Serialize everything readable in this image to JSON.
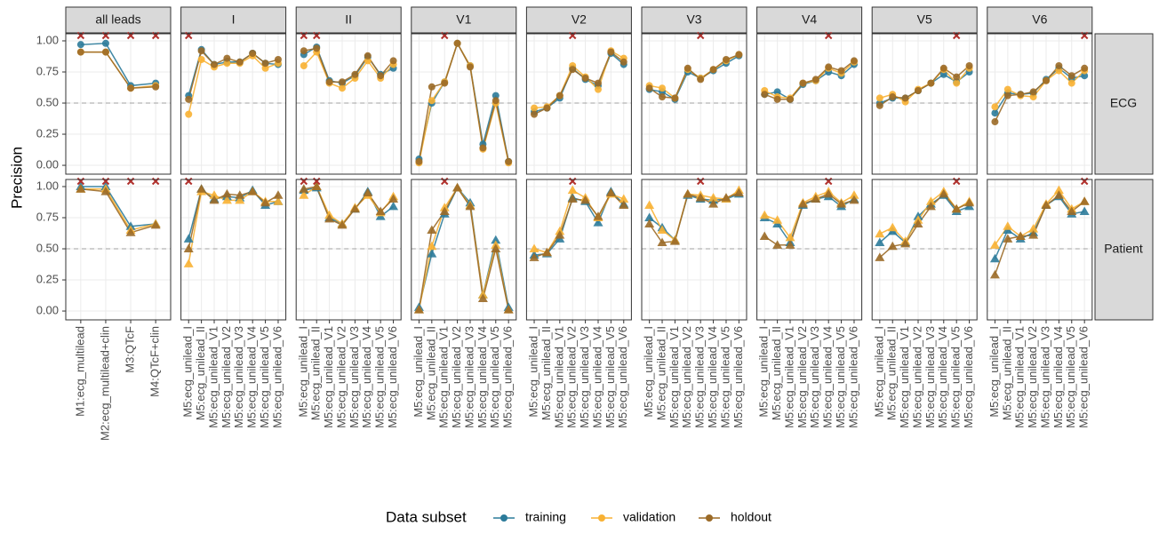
{
  "chart_data": {
    "type": "line",
    "y_label": "Precision",
    "legend_title": "Data subset",
    "series": [
      {
        "name": "training",
        "color": "#2c7b9a"
      },
      {
        "name": "validation",
        "color": "#f8b133"
      },
      {
        "name": "holdout",
        "color": "#9b6a27"
      }
    ],
    "rows": [
      {
        "name": "ECG",
        "marker": "circle"
      },
      {
        "name": "Patient",
        "marker": "triangle"
      }
    ],
    "ylim": [
      -0.071,
      1.057
    ],
    "yticks": [
      {
        "value": 0,
        "label": "0.00"
      },
      {
        "value": 0.25,
        "label": "0.25"
      },
      {
        "value": 0.5,
        "label": "0.50"
      },
      {
        "value": 0.75,
        "label": "0.75"
      },
      {
        "value": 1,
        "label": "1.00"
      }
    ],
    "reference_line": 0.5,
    "grid": true,
    "highlight_color": "#b0302c",
    "panels": [
      {
        "name": "all leads",
        "categories": [
          "M1:ecg_multilead",
          "M2:ecg_multilead+clin",
          "M3:QTcF",
          "M4:QTcF+clin"
        ],
        "highlight": [
          0,
          1,
          2,
          3
        ],
        "values": [
          [
            [
              0.97,
              0.98,
              0.64,
              0.66
            ],
            [
              0.91,
              0.91,
              0.62,
              0.64
            ],
            [
              0.91,
              0.91,
              0.62,
              0.63
            ]
          ],
          [
            [
              1.0,
              1.0,
              0.68,
              0.7
            ],
            [
              0.98,
              0.98,
              0.65,
              0.7
            ],
            [
              0.98,
              0.96,
              0.63,
              0.69
            ]
          ]
        ]
      },
      {
        "name": "I",
        "categories": [
          "M5:ecg_unilead_I",
          "M5:ecg_unilead_II",
          "M5:ecg_unilead_V1",
          "M5:ecg_unilead_V2",
          "M5:ecg_unilead_V3",
          "M5:ecg_unilead_V4",
          "M5:ecg_unilead_V5",
          "M5:ecg_unilead_V6"
        ],
        "highlight": [
          0
        ],
        "values": [
          [
            [
              0.56,
              0.93,
              0.81,
              0.83,
              0.83,
              0.9,
              0.82,
              0.81
            ],
            [
              0.41,
              0.85,
              0.79,
              0.82,
              0.82,
              0.88,
              0.78,
              0.82
            ],
            [
              0.53,
              0.92,
              0.81,
              0.86,
              0.83,
              0.9,
              0.82,
              0.85
            ]
          ],
          [
            [
              0.58,
              0.98,
              0.9,
              0.92,
              0.91,
              0.97,
              0.85,
              0.88
            ],
            [
              0.38,
              0.96,
              0.93,
              0.89,
              0.89,
              0.96,
              0.88,
              0.88
            ],
            [
              0.5,
              0.98,
              0.89,
              0.94,
              0.93,
              0.96,
              0.87,
              0.93
            ]
          ]
        ]
      },
      {
        "name": "II",
        "categories": [
          "M5:ecg_unilead_I",
          "M5:ecg_unilead_II",
          "M5:ecg_unilead_V1",
          "M5:ecg_unilead_V2",
          "M5:ecg_unilead_V3",
          "M5:ecg_unilead_V4",
          "M5:ecg_unilead_V5",
          "M5:ecg_unilead_V6"
        ],
        "highlight": [
          0,
          1
        ],
        "values": [
          [
            [
              0.89,
              0.95,
              0.68,
              0.66,
              0.72,
              0.87,
              0.73,
              0.78
            ],
            [
              0.8,
              0.91,
              0.66,
              0.62,
              0.7,
              0.84,
              0.7,
              0.81
            ],
            [
              0.92,
              0.94,
              0.67,
              0.67,
              0.73,
              0.88,
              0.72,
              0.84
            ]
          ],
          [
            [
              0.97,
              0.99,
              0.75,
              0.7,
              0.82,
              0.96,
              0.76,
              0.84
            ],
            [
              0.93,
              1.0,
              0.77,
              0.7,
              0.83,
              0.93,
              0.79,
              0.92
            ],
            [
              0.98,
              1.0,
              0.74,
              0.69,
              0.82,
              0.95,
              0.8,
              0.9
            ]
          ]
        ]
      },
      {
        "name": "V1",
        "categories": [
          "M5:ecg_unilead_I",
          "M5:ecg_unilead_II",
          "M5:ecg_unilead_V1",
          "M5:ecg_unilead_V2",
          "M5:ecg_unilead_V3",
          "M5:ecg_unilead_V4",
          "M5:ecg_unilead_V5",
          "M5:ecg_unilead_V6"
        ],
        "highlight": [
          2
        ],
        "values": [
          [
            [
              0.05,
              0.5,
              0.67,
              0.98,
              0.8,
              0.17,
              0.56,
              0.03
            ],
            [
              0.02,
              0.52,
              0.67,
              0.98,
              0.8,
              0.13,
              0.5,
              0.02
            ],
            [
              0.03,
              0.63,
              0.66,
              0.98,
              0.79,
              0.14,
              0.52,
              0.03
            ]
          ],
          [
            [
              0.03,
              0.46,
              0.78,
              0.99,
              0.87,
              0.13,
              0.57,
              0.03
            ],
            [
              0.01,
              0.52,
              0.83,
              0.99,
              0.85,
              0.13,
              0.53,
              0.01
            ],
            [
              0.01,
              0.65,
              0.8,
              0.99,
              0.84,
              0.1,
              0.5,
              0.01
            ]
          ]
        ]
      },
      {
        "name": "V2",
        "categories": [
          "M5:ecg_unilead_I",
          "M5:ecg_unilead_II",
          "M5:ecg_unilead_V1",
          "M5:ecg_unilead_V2",
          "M5:ecg_unilead_V3",
          "M5:ecg_unilead_V4",
          "M5:ecg_unilead_V5",
          "M5:ecg_unilead_V6"
        ],
        "highlight": [
          3
        ],
        "values": [
          [
            [
              0.43,
              0.46,
              0.54,
              0.78,
              0.69,
              0.64,
              0.9,
              0.81
            ],
            [
              0.46,
              0.47,
              0.56,
              0.8,
              0.71,
              0.61,
              0.92,
              0.86
            ],
            [
              0.41,
              0.46,
              0.56,
              0.77,
              0.7,
              0.66,
              0.91,
              0.83
            ]
          ],
          [
            [
              0.45,
              0.46,
              0.58,
              0.91,
              0.88,
              0.71,
              0.96,
              0.86
            ],
            [
              0.5,
              0.47,
              0.64,
              0.97,
              0.91,
              0.75,
              0.94,
              0.9
            ],
            [
              0.43,
              0.47,
              0.61,
              0.9,
              0.89,
              0.76,
              0.95,
              0.85
            ]
          ]
        ]
      },
      {
        "name": "V3",
        "categories": [
          "M5:ecg_unilead_I",
          "M5:ecg_unilead_II",
          "M5:ecg_unilead_V1",
          "M5:ecg_unilead_V2",
          "M5:ecg_unilead_V3",
          "M5:ecg_unilead_V4",
          "M5:ecg_unilead_V5",
          "M5:ecg_unilead_V6"
        ],
        "highlight": [
          4
        ],
        "values": [
          [
            [
              0.61,
              0.59,
              0.53,
              0.75,
              0.7,
              0.76,
              0.82,
              0.88
            ],
            [
              0.64,
              0.62,
              0.54,
              0.77,
              0.7,
              0.77,
              0.84,
              0.89
            ],
            [
              0.62,
              0.55,
              0.54,
              0.78,
              0.69,
              0.77,
              0.85,
              0.89
            ]
          ],
          [
            [
              0.75,
              0.67,
              0.57,
              0.93,
              0.9,
              0.89,
              0.9,
              0.94
            ],
            [
              0.85,
              0.65,
              0.57,
              0.94,
              0.93,
              0.91,
              0.9,
              0.97
            ],
            [
              0.7,
              0.55,
              0.56,
              0.94,
              0.91,
              0.86,
              0.91,
              0.95
            ]
          ]
        ]
      },
      {
        "name": "V4",
        "categories": [
          "M5:ecg_unilead_I",
          "M5:ecg_unilead_II",
          "M5:ecg_unilead_V1",
          "M5:ecg_unilead_V2",
          "M5:ecg_unilead_V3",
          "M5:ecg_unilead_V4",
          "M5:ecg_unilead_V5",
          "M5:ecg_unilead_V6"
        ],
        "highlight": [
          5
        ],
        "values": [
          [
            [
              0.57,
              0.59,
              0.53,
              0.65,
              0.68,
              0.75,
              0.72,
              0.81
            ],
            [
              0.6,
              0.55,
              0.54,
              0.66,
              0.68,
              0.78,
              0.74,
              0.83
            ],
            [
              0.57,
              0.53,
              0.53,
              0.66,
              0.69,
              0.79,
              0.76,
              0.84
            ]
          ],
          [
            [
              0.75,
              0.7,
              0.55,
              0.85,
              0.9,
              0.92,
              0.84,
              0.9
            ],
            [
              0.77,
              0.73,
              0.59,
              0.87,
              0.92,
              0.96,
              0.87,
              0.93
            ],
            [
              0.6,
              0.53,
              0.53,
              0.86,
              0.9,
              0.94,
              0.86,
              0.89
            ]
          ]
        ]
      },
      {
        "name": "V5",
        "categories": [
          "M5:ecg_unilead_I",
          "M5:ecg_unilead_II",
          "M5:ecg_unilead_V1",
          "M5:ecg_unilead_V2",
          "M5:ecg_unilead_V3",
          "M5:ecg_unilead_V4",
          "M5:ecg_unilead_V5",
          "M5:ecg_unilead_V6"
        ],
        "highlight": [
          6
        ],
        "values": [
          [
            [
              0.5,
              0.54,
              0.54,
              0.6,
              0.66,
              0.73,
              0.67,
              0.75
            ],
            [
              0.54,
              0.57,
              0.51,
              0.61,
              0.66,
              0.77,
              0.66,
              0.78
            ],
            [
              0.48,
              0.55,
              0.54,
              0.6,
              0.66,
              0.78,
              0.71,
              0.8
            ]
          ],
          [
            [
              0.55,
              0.64,
              0.55,
              0.76,
              0.86,
              0.93,
              0.8,
              0.84
            ],
            [
              0.62,
              0.67,
              0.56,
              0.73,
              0.88,
              0.96,
              0.82,
              0.88
            ],
            [
              0.43,
              0.52,
              0.54,
              0.7,
              0.84,
              0.94,
              0.82,
              0.87
            ]
          ]
        ]
      },
      {
        "name": "V6",
        "categories": [
          "M5:ecg_unilead_I",
          "M5:ecg_unilead_II",
          "M5:ecg_unilead_V1",
          "M5:ecg_unilead_V2",
          "M5:ecg_unilead_V3",
          "M5:ecg_unilead_V4",
          "M5:ecg_unilead_V5",
          "M5:ecg_unilead_V6"
        ],
        "highlight": [
          7
        ],
        "values": [
          [
            [
              0.42,
              0.58,
              0.57,
              0.58,
              0.69,
              0.78,
              0.7,
              0.72
            ],
            [
              0.47,
              0.61,
              0.56,
              0.55,
              0.68,
              0.76,
              0.66,
              0.76
            ],
            [
              0.35,
              0.56,
              0.57,
              0.59,
              0.68,
              0.8,
              0.72,
              0.78
            ]
          ],
          [
            [
              0.42,
              0.65,
              0.58,
              0.63,
              0.85,
              0.92,
              0.78,
              0.8
            ],
            [
              0.53,
              0.68,
              0.6,
              0.66,
              0.86,
              0.97,
              0.82,
              0.88
            ],
            [
              0.29,
              0.58,
              0.6,
              0.61,
              0.85,
              0.93,
              0.8,
              0.88
            ]
          ]
        ]
      }
    ]
  }
}
